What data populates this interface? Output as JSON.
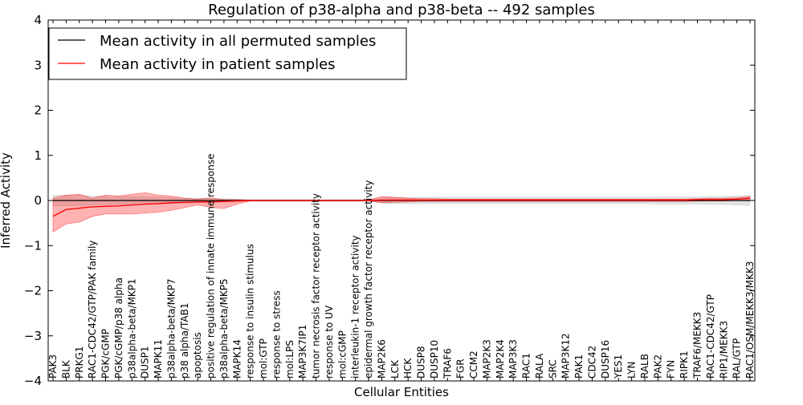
{
  "chart_data": {
    "type": "line",
    "title": "Regulation of p38-alpha and p38-beta -- 492 samples",
    "xlabel": "Cellular Entities",
    "ylabel": "Inferred Activity",
    "ylim": [
      -4,
      4
    ],
    "yticks": [
      -4,
      -3,
      -2,
      -1,
      0,
      1,
      2,
      3,
      4
    ],
    "ytick_labels": [
      "−4",
      "−3",
      "−2",
      "−1",
      "0",
      "1",
      "2",
      "3",
      "4"
    ],
    "legend_position": "top-left",
    "categories": [
      "PAK3",
      "BLK",
      "PRKG1",
      "RAC1-CDC42/GTP/PAK family",
      "PGK/cGMP",
      "PGK/cGMP/p38 alpha",
      "p38alpha-beta/MKP1",
      "DUSP1",
      "MAPK11",
      "p38alpha-beta/MKP7",
      "p38 alpha/TAB1",
      "apoptosis",
      "positive regulation of innate immune response",
      "p38alpha-beta/MKP5",
      "MAPK14",
      "response to insulin stimulus",
      "mol:GTP",
      "response to stress",
      "mol:LPS",
      "MAP3K7IP1",
      "tumor necrosis factor receptor activity",
      "response to UV",
      "mol:cGMP",
      "interleukin-1 receptor activity",
      "epidermal growth factor receptor activity",
      "MAP2K6",
      "LCK",
      "HCK",
      "DUSP8",
      "DUSP10",
      "TRAF6",
      "FGR",
      "CCM2",
      "MAP2K3",
      "MAP2K4",
      "MAP3K3",
      "RAC1",
      "RALA",
      "SRC",
      "MAP3K12",
      "PAK1",
      "CDC42",
      "DUSP16",
      "YES1",
      "LYN",
      "RALB",
      "PAK2",
      "FYN",
      "RIPK1",
      "TRAF6/MEKK3",
      "RAC1-CDC42/GTP",
      "RIP1/MEKK3",
      "RAL/GTP",
      "RAC1/OSM/MEKK3/MKK3"
    ],
    "series": [
      {
        "name": "Mean activity in all permuted samples",
        "color": "#000000",
        "values": [
          0,
          0,
          0,
          0,
          0,
          0,
          0,
          0,
          0,
          0,
          0,
          0,
          0,
          0,
          0,
          0,
          0,
          0,
          0,
          0,
          0,
          0,
          0,
          0,
          0,
          0,
          0,
          0,
          0,
          0,
          0,
          0,
          0,
          0,
          0,
          0,
          0,
          0,
          0,
          0,
          0,
          0,
          0,
          0,
          0,
          0,
          0,
          0,
          0,
          0,
          0,
          0,
          0,
          0
        ],
        "band_upper": [
          0.12,
          0.12,
          0.12,
          0.1,
          0.09,
          0.09,
          0.09,
          0.08,
          0.08,
          0.07,
          0.06,
          0.05,
          0.05,
          0.04,
          0.03,
          0.02,
          0.02,
          0.02,
          0.02,
          0.02,
          0.02,
          0.02,
          0.02,
          0.02,
          0.02,
          0.06,
          0.07,
          0.07,
          0.07,
          0.07,
          0.07,
          0.07,
          0.07,
          0.07,
          0.07,
          0.07,
          0.07,
          0.07,
          0.07,
          0.07,
          0.07,
          0.07,
          0.07,
          0.07,
          0.07,
          0.07,
          0.08,
          0.08,
          0.08,
          0.08,
          0.09,
          0.09,
          0.1,
          0.11
        ],
        "band_lower": [
          -0.12,
          -0.12,
          -0.12,
          -0.1,
          -0.09,
          -0.09,
          -0.09,
          -0.08,
          -0.08,
          -0.07,
          -0.06,
          -0.05,
          -0.05,
          -0.04,
          -0.03,
          -0.02,
          -0.02,
          -0.02,
          -0.02,
          -0.02,
          -0.02,
          -0.02,
          -0.02,
          -0.02,
          -0.02,
          -0.06,
          -0.07,
          -0.07,
          -0.07,
          -0.07,
          -0.07,
          -0.07,
          -0.07,
          -0.07,
          -0.07,
          -0.07,
          -0.07,
          -0.07,
          -0.07,
          -0.07,
          -0.07,
          -0.07,
          -0.07,
          -0.07,
          -0.07,
          -0.07,
          -0.08,
          -0.08,
          -0.08,
          -0.08,
          -0.09,
          -0.09,
          -0.1,
          -0.11
        ],
        "band_color": "#bfbfbf"
      },
      {
        "name": "Mean activity in patient samples",
        "color": "#ff0000",
        "values": [
          -0.35,
          -0.2,
          -0.17,
          -0.14,
          -0.13,
          -0.12,
          -0.1,
          -0.08,
          -0.07,
          -0.05,
          -0.04,
          -0.03,
          -0.03,
          -0.02,
          -0.01,
          0,
          0,
          0,
          0,
          0,
          0,
          0,
          0,
          0,
          0,
          0.01,
          0.01,
          0.01,
          0.01,
          0.01,
          0.01,
          0.01,
          0.01,
          0.01,
          0.01,
          0.01,
          0.01,
          0.01,
          0.01,
          0.01,
          0.01,
          0.01,
          0.01,
          0.01,
          0.01,
          0.01,
          0.01,
          0.01,
          0.01,
          0.02,
          0.02,
          0.02,
          0.03,
          0.05
        ],
        "band_upper": [
          0.05,
          0.12,
          0.14,
          0.05,
          0.12,
          0.1,
          0.14,
          0.17,
          0.12,
          0.1,
          0.05,
          0.03,
          0.06,
          0.02,
          0.02,
          0.01,
          0.01,
          0.01,
          0.01,
          0.01,
          0.01,
          0.01,
          0.01,
          0.01,
          0.01,
          0.09,
          0.07,
          0.05,
          0.04,
          0.04,
          0.03,
          0.03,
          0.03,
          0.03,
          0.03,
          0.03,
          0.03,
          0.03,
          0.03,
          0.03,
          0.03,
          0.03,
          0.03,
          0.03,
          0.03,
          0.03,
          0.03,
          0.03,
          0.03,
          0.04,
          0.05,
          0.05,
          0.06,
          0.09
        ],
        "band_lower": [
          -0.7,
          -0.52,
          -0.48,
          -0.35,
          -0.3,
          -0.3,
          -0.3,
          -0.28,
          -0.26,
          -0.22,
          -0.16,
          -0.1,
          -0.15,
          -0.18,
          -0.08,
          -0.01,
          -0.01,
          -0.01,
          -0.01,
          -0.01,
          -0.01,
          -0.01,
          -0.01,
          -0.01,
          -0.01,
          -0.05,
          -0.04,
          -0.03,
          -0.02,
          -0.02,
          -0.02,
          -0.02,
          -0.02,
          -0.02,
          -0.02,
          -0.02,
          -0.02,
          -0.02,
          -0.02,
          -0.02,
          -0.02,
          -0.02,
          -0.02,
          -0.02,
          -0.02,
          -0.02,
          -0.02,
          -0.02,
          -0.02,
          -0.01,
          -0.01,
          -0.01,
          0,
          0.01
        ],
        "band_color": "#ff0000"
      }
    ]
  }
}
